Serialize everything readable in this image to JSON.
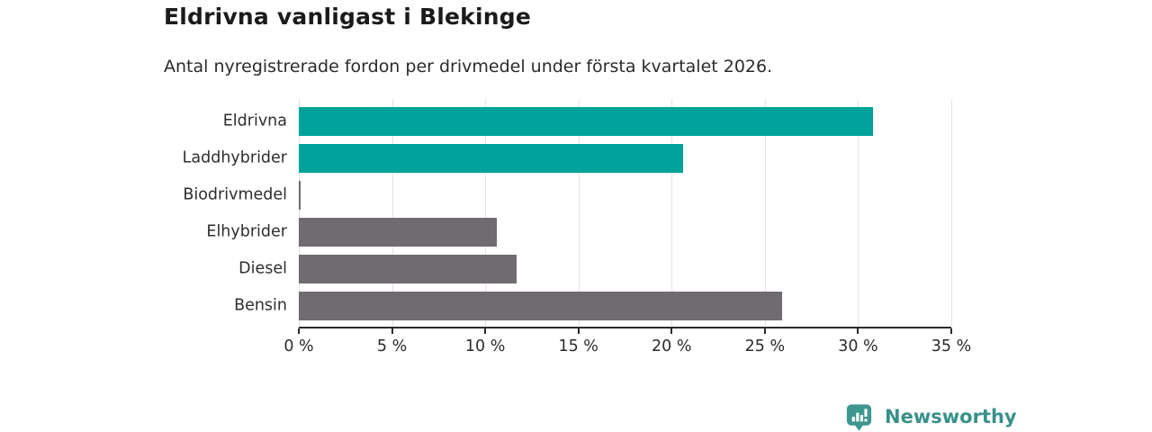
{
  "header": {
    "title": "Eldrivna vanligast i Blekinge",
    "subtitle": "Antal nyregistrerade fordon per drivmedel under första kvartalet 2026."
  },
  "chart_data": {
    "type": "bar",
    "orientation": "horizontal",
    "title": "Eldrivna vanligast i Blekinge",
    "subtitle": "Antal nyregistrerade fordon per drivmedel under första kvartalet 2026.",
    "categories": [
      "Eldrivna",
      "Laddhybrider",
      "Biodrivmedel",
      "Elhybrider",
      "Diesel",
      "Bensin"
    ],
    "values": [
      30.8,
      20.6,
      0.1,
      10.6,
      11.7,
      25.9
    ],
    "unit": "%",
    "xlim": [
      0,
      35
    ],
    "x_ticks": [
      0,
      5,
      10,
      15,
      20,
      25,
      30,
      35
    ],
    "x_tick_labels": [
      "0 %",
      "5 %",
      "10 %",
      "15 %",
      "20 %",
      "25 %",
      "30 %",
      "35 %"
    ],
    "bar_colors": [
      "#00a39b",
      "#00a39b",
      "#6f6b71",
      "#6f6b71",
      "#6f6b71",
      "#6f6b71"
    ],
    "grid": true,
    "legend": "none",
    "xlabel": "",
    "ylabel": ""
  },
  "colors": {
    "highlight": "#00a39b",
    "muted": "#6f6b71",
    "gridline": "#e3e3e3",
    "axis": "#2b2b2b",
    "brand": "#38918a"
  },
  "footer": {
    "brand_name": "Newsworthy",
    "logo_icon": "newsworthy-pin-bar-chart-icon"
  }
}
